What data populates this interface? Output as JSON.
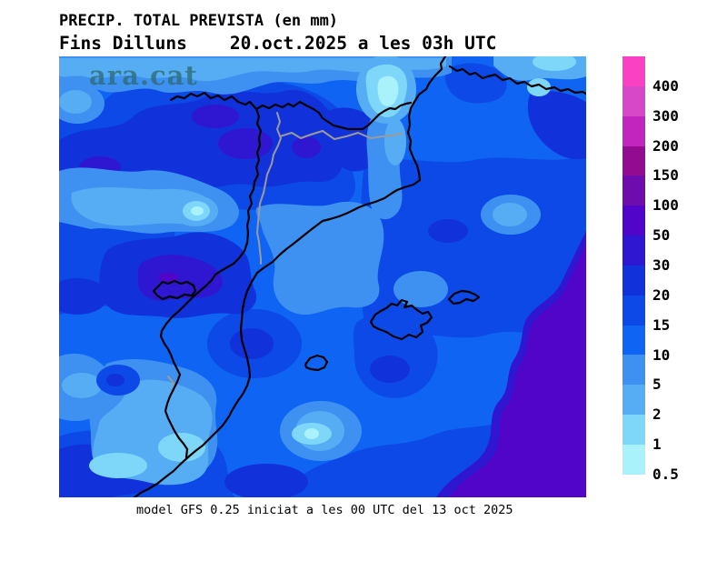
{
  "title_line1": "PRECIP. TOTAL PREVISTA (en mm)",
  "title_line2": "Fins Dilluns    20.oct.2025 a les 03h UTC",
  "footer": "model GFS 0.25 iniciat a les 00 UTC del 13 oct 2025",
  "map": {
    "watermark": "ara.cat",
    "region": "Catalunya / NE Iberian Peninsula, Balearic Islands and Gulf of Lion",
    "coastline_color": "#000000",
    "province_border_color": "#9A9A9A",
    "watermark_color": "#2E6E78"
  },
  "legend": {
    "units": "mm",
    "bands": [
      {
        "label": "400",
        "color": "#FA41C3"
      },
      {
        "label": "300",
        "color": "#D648C8"
      },
      {
        "label": "200",
        "color": "#C224BE"
      },
      {
        "label": "150",
        "color": "#920B90"
      },
      {
        "label": "100",
        "color": "#6F0CAE"
      },
      {
        "label": "50",
        "color": "#5105C9"
      },
      {
        "label": "30",
        "color": "#2F17D1"
      },
      {
        "label": "20",
        "color": "#1132DB"
      },
      {
        "label": "15",
        "color": "#0C49E6"
      },
      {
        "label": "10",
        "color": "#0F64F4"
      },
      {
        "label": "5",
        "color": "#3E91F0"
      },
      {
        "label": "2",
        "color": "#57ADF3"
      },
      {
        "label": "1",
        "color": "#7ED7F8"
      },
      {
        "label": "0.5",
        "color": "#A9F2FC"
      }
    ]
  }
}
